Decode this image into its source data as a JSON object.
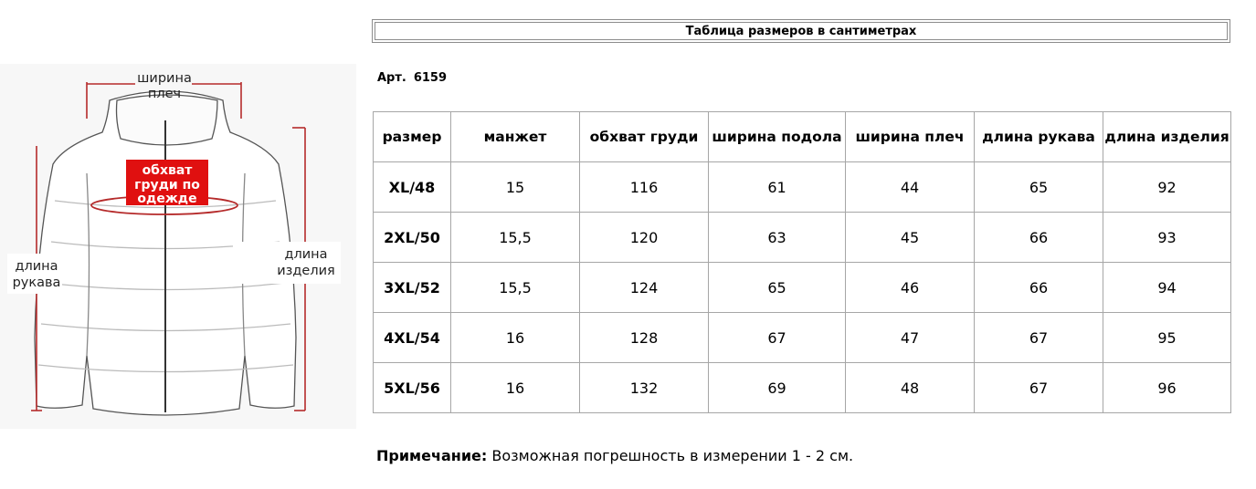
{
  "title": "Таблица размеров в сантиметрах",
  "article": {
    "label": "Арт.",
    "number": "6159"
  },
  "diagram": {
    "shoulder_label_1": "ширина",
    "shoulder_label_2": "плеч",
    "chest_label_1": "обхват",
    "chest_label_2": "груди по",
    "chest_label_3": "одежде",
    "sleeve_label_1": "длина",
    "sleeve_label_2": "рукава",
    "length_label_1": "длина",
    "length_label_2": "изделия",
    "colors": {
      "measure_line": "#b52a2a",
      "chest_box": "#e01010",
      "outline": "#555555"
    }
  },
  "table": {
    "headers": [
      "размер",
      "манжет",
      "обхват груди",
      "ширина подола",
      "ширина плеч",
      "длина рукава",
      "длина изделия"
    ],
    "rows": [
      [
        "XL/48",
        "15",
        "116",
        "61",
        "44",
        "65",
        "92"
      ],
      [
        "2XL/50",
        "15,5",
        "120",
        "63",
        "45",
        "66",
        "93"
      ],
      [
        "3XL/52",
        "15,5",
        "124",
        "65",
        "46",
        "66",
        "94"
      ],
      [
        "4XL/54",
        "16",
        "128",
        "67",
        "47",
        "67",
        "95"
      ],
      [
        "5XL/56",
        "16",
        "132",
        "69",
        "48",
        "67",
        "96"
      ]
    ]
  },
  "note": {
    "label": "Примечание:",
    "text": "Возможная погрешность в измерении 1 - 2 см."
  }
}
